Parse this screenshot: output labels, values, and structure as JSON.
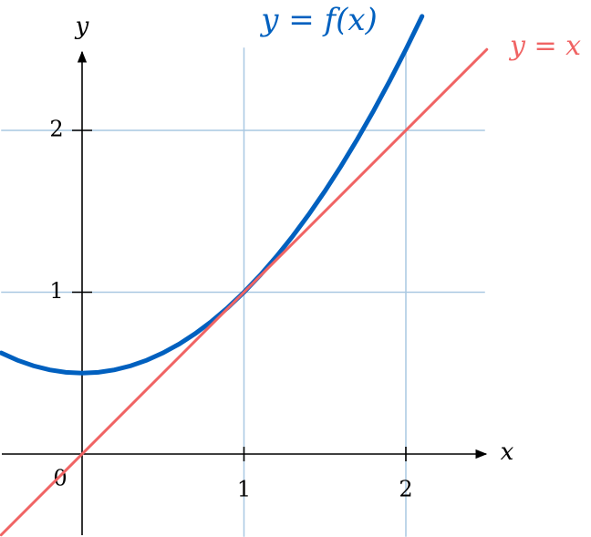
{
  "chart_data": {
    "type": "line",
    "xlabel": "x",
    "ylabel": "y",
    "origin_label": 0,
    "xlim": [
      -0.5,
      2.5
    ],
    "ylim": [
      -0.5,
      2.5
    ],
    "xticks": [
      1,
      2
    ],
    "yticks": [
      1,
      2
    ],
    "grid": true,
    "series": [
      {
        "name": "y = f(x)",
        "color": "#0060bf",
        "x": [
          -0.5,
          -0.4,
          -0.3,
          -0.2,
          -0.1,
          0,
          0.1,
          0.2,
          0.3,
          0.4,
          0.5,
          0.6,
          0.7,
          0.8,
          0.9,
          1.0,
          1.1,
          1.2,
          1.3,
          1.4,
          1.5,
          1.6,
          1.7,
          1.8,
          1.9,
          2.0,
          2.1
        ],
        "values": [
          0.625,
          0.58,
          0.545,
          0.52,
          0.505,
          0.5,
          0.505,
          0.52,
          0.545,
          0.58,
          0.625,
          0.68,
          0.745,
          0.82,
          0.905,
          1,
          1.105,
          1.22,
          1.345,
          1.48,
          1.625,
          1.78,
          1.945,
          2.12,
          2.305,
          2.5,
          2.705
        ]
      },
      {
        "name": "y = x",
        "color": "#f06464",
        "x": [
          -0.5,
          2.5
        ],
        "values": [
          -0.5,
          2.5
        ]
      }
    ]
  }
}
